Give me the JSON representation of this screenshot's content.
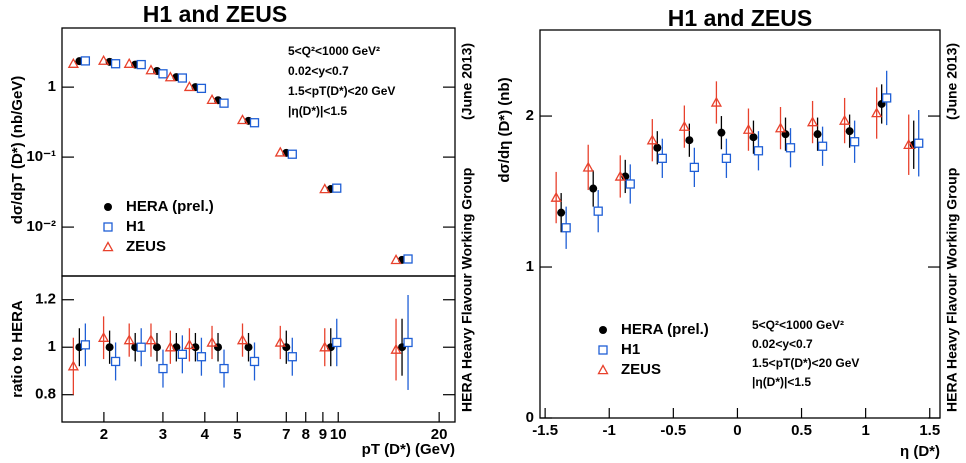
{
  "chart_data": [
    {
      "type": "scatter",
      "title": "H1 and ZEUS",
      "y_label": "dσ/dpT (D*) (nb/GeV)",
      "logx": true,
      "logy": true,
      "xlim": [
        1.5,
        22.3
      ],
      "ylim": [
        0.002,
        7
      ],
      "yticks": [
        {
          "value": 0.01,
          "label": "10⁻²"
        },
        {
          "value": 0.1,
          "label": "10⁻¹"
        },
        1
      ],
      "x": [
        1.69,
        2.08,
        2.48,
        2.88,
        3.29,
        3.75,
        4.38,
        5.4,
        7,
        9.5,
        15.5
      ],
      "series": [
        {
          "name": "HERA (prel.)",
          "color": "#000000",
          "marker": "circle",
          "values": [
            2.35,
            2.3,
            2.1,
            1.7,
            1.39,
            1.0,
            0.65,
            0.33,
            0.115,
            0.035,
            0.0034
          ]
        },
        {
          "name": "H1",
          "color": "#1f5fd6",
          "marker": "square",
          "values": [
            2.37,
            2.16,
            2.1,
            1.55,
            1.35,
            0.96,
            0.59,
            0.31,
            0.11,
            0.036,
            0.0035
          ]
        },
        {
          "name": "ZEUS",
          "color": "#e8412c",
          "marker": "triangle",
          "values": [
            2.16,
            2.39,
            2.16,
            1.75,
            1.39,
            1.01,
            0.66,
            0.34,
            0.117,
            0.035,
            0.0034
          ]
        }
      ],
      "annotations": [
        "5<Q²<1000 GeV²",
        "0.02<y<0.7",
        "1.5<pT(D*)<20 GeV",
        "|η(D*)|<1.5"
      ],
      "credit": [
        "(June 2013)",
        "HERA Heavy Flavour Working Group"
      ]
    },
    {
      "type": "scatter",
      "y_label": "ratio to HERA",
      "x_label": "pT (D*) (GeV)",
      "logx": true,
      "xlim": [
        1.5,
        22.3
      ],
      "ylim": [
        0.685,
        1.3
      ],
      "xticks": [
        2,
        3,
        4,
        5,
        7,
        8,
        9,
        10,
        20
      ],
      "yticks": [
        0.8,
        1,
        1.2
      ],
      "x": [
        1.69,
        2.08,
        2.48,
        2.88,
        3.29,
        3.75,
        4.38,
        5.4,
        7,
        9.5,
        15.5
      ],
      "series": [
        {
          "color": "#000000",
          "marker": "circle",
          "values": [
            1,
            1,
            1,
            1,
            1,
            1,
            1,
            1,
            1,
            1,
            1
          ],
          "errors": [
            0.08,
            0.07,
            0.06,
            0.06,
            0.06,
            0.06,
            0.06,
            0.06,
            0.07,
            0.08,
            0.12
          ]
        },
        {
          "color": "#1f5fd6",
          "marker": "square",
          "values": [
            1.01,
            0.94,
            1.0,
            0.91,
            0.97,
            0.96,
            0.91,
            0.94,
            0.96,
            1.02,
            1.02
          ],
          "errors": [
            0.09,
            0.08,
            0.08,
            0.08,
            0.08,
            0.08,
            0.08,
            0.08,
            0.08,
            0.1,
            0.2
          ]
        },
        {
          "color": "#e8412c",
          "marker": "triangle",
          "values": [
            0.92,
            1.04,
            1.03,
            1.03,
            1.0,
            1.01,
            1.02,
            1.03,
            1.02,
            1.0,
            0.99
          ],
          "errors": [
            0.12,
            0.09,
            0.07,
            0.07,
            0.07,
            0.07,
            0.07,
            0.07,
            0.07,
            0.08,
            0.13
          ]
        }
      ]
    },
    {
      "type": "scatter",
      "title": "H1 and ZEUS",
      "y_label": "dσ/dη (D*) (nb)",
      "x_label": "η (D*)",
      "xlim": [
        -1.54,
        1.58
      ],
      "ylim": [
        0,
        2.57
      ],
      "xticks": [
        -1.5,
        -1,
        -0.5,
        0,
        0.5,
        1,
        1.5
      ],
      "yticks": [
        0,
        1,
        2
      ],
      "x": [
        -1.375,
        -1.125,
        -0.875,
        -0.625,
        -0.375,
        -0.125,
        0.125,
        0.375,
        0.625,
        0.875,
        1.125,
        1.375
      ],
      "series": [
        {
          "name": "HERA (prel.)",
          "color": "#000000",
          "marker": "circle",
          "values": [
            1.36,
            1.52,
            1.6,
            1.79,
            1.84,
            1.89,
            1.86,
            1.88,
            1.88,
            1.9,
            2.08,
            1.81
          ],
          "errors": [
            0.13,
            0.12,
            0.11,
            0.11,
            0.11,
            0.11,
            0.11,
            0.11,
            0.11,
            0.11,
            0.13,
            0.16
          ]
        },
        {
          "name": "H1",
          "color": "#1f5fd6",
          "marker": "square",
          "values": [
            1.26,
            1.37,
            1.55,
            1.72,
            1.66,
            1.72,
            1.77,
            1.79,
            1.8,
            1.83,
            2.12,
            1.82
          ],
          "errors": [
            0.14,
            0.14,
            0.13,
            0.13,
            0.13,
            0.13,
            0.13,
            0.13,
            0.13,
            0.14,
            0.18,
            0.22
          ]
        },
        {
          "name": "ZEUS",
          "color": "#e8412c",
          "marker": "triangle",
          "values": [
            1.46,
            1.66,
            1.6,
            1.84,
            1.93,
            2.09,
            1.91,
            1.92,
            1.96,
            1.97,
            2.02,
            1.81
          ],
          "errors": [
            0.17,
            0.15,
            0.14,
            0.14,
            0.14,
            0.14,
            0.14,
            0.14,
            0.14,
            0.15,
            0.17,
            0.2
          ]
        }
      ],
      "annotations": [
        "5<Q²<1000 GeV²",
        "0.02<y<0.7",
        "1.5<pT(D*)<20 GeV",
        "|η(D*)|<1.5"
      ],
      "credit": [
        "(June 2013)",
        "HERA Heavy Flavour Working Group"
      ]
    }
  ]
}
